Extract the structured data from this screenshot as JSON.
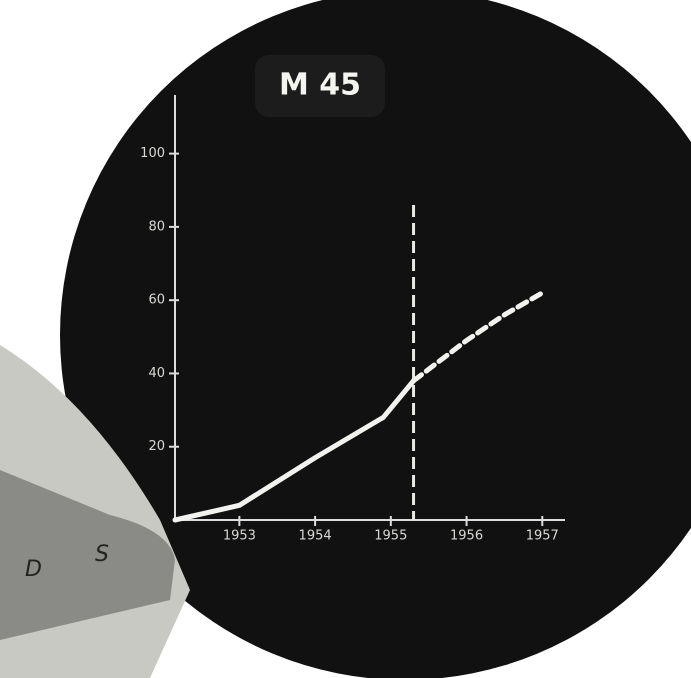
{
  "chart_data": {
    "type": "line",
    "title": "M 45",
    "series": [
      {
        "color": "#f2f2ee",
        "dashed": false,
        "x": [
          1952.15,
          1953,
          1954,
          1954.9,
          1955.3
        ],
        "values": [
          0,
          4,
          17,
          28,
          38
        ]
      },
      {
        "color": "#f2f2ee",
        "dashed": true,
        "x": [
          1955.3,
          1956,
          1956.5,
          1957
        ],
        "values": [
          38,
          49,
          56,
          62
        ]
      }
    ],
    "marker_x": 1955.3,
    "xlim": [
      1952.15,
      1957.3
    ],
    "xticks": [
      1953,
      1954,
      1955,
      1956,
      1957
    ],
    "ylim": [
      0,
      116
    ],
    "yticks": [
      20,
      40,
      60,
      80,
      100
    ],
    "grid": false
  },
  "device_labels": [
    "D",
    "S"
  ]
}
